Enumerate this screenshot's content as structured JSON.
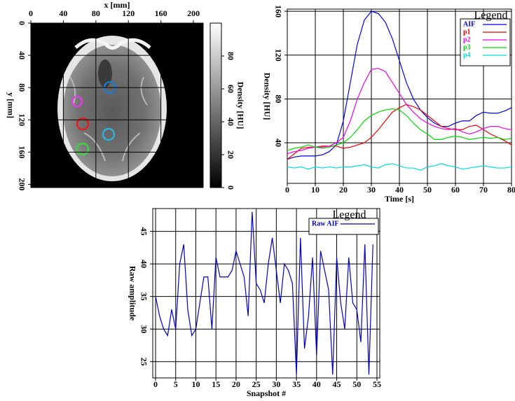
{
  "chart_data": [
    {
      "type": "image",
      "xlabel": "x [mm]",
      "ylabel": "y [mm]",
      "xlim": [
        0,
        212
      ],
      "ylim": [
        0,
        204
      ],
      "xticks": [
        0,
        40,
        80,
        120,
        160,
        200
      ],
      "yticks": [
        0,
        40,
        80,
        120,
        160,
        200
      ],
      "x_axis_position": "top",
      "y_inverted": true,
      "grid": true,
      "colorbar": {
        "label": "Density [HU]",
        "clim": [
          0,
          100
        ],
        "ticks": [
          0,
          20,
          40,
          60,
          80
        ]
      }
    },
    {
      "type": "line",
      "xlabel": "Time [s]",
      "ylabel": "Density [HU]",
      "xlim": [
        0,
        80
      ],
      "ylim": [
        3,
        162
      ],
      "xticks": [
        0,
        10,
        20,
        30,
        40,
        50,
        60,
        70,
        80
      ],
      "yticks": [
        40,
        80,
        120,
        160
      ],
      "grid": true,
      "legend": {
        "title": "Legend",
        "loc": "upper right"
      },
      "x": [
        0,
        2.5,
        5,
        7.5,
        10,
        12.5,
        15,
        17.5,
        20,
        22.5,
        25,
        27.5,
        30,
        32.5,
        35,
        37.5,
        40,
        42.5,
        45,
        47.5,
        50,
        52.5,
        55,
        57.5,
        60,
        62.5,
        65,
        67.5,
        70,
        72.5,
        75,
        77.5,
        80
      ],
      "series": [
        {
          "name": "AIF",
          "color": "#0000ee",
          "values": [
            25,
            27,
            28,
            28,
            28,
            29,
            32,
            38,
            60,
            95,
            130,
            152,
            160,
            158,
            150,
            135,
            115,
            95,
            80,
            70,
            63,
            58,
            55,
            55,
            58,
            60,
            60,
            65,
            68,
            67,
            67,
            69,
            72
          ]
        },
        {
          "name": "p1",
          "color": "#ee0000",
          "values": [
            25,
            30,
            35,
            36,
            36,
            37,
            37,
            37,
            35,
            36,
            38,
            40,
            45,
            52,
            60,
            68,
            72,
            75,
            73,
            70,
            65,
            60,
            55,
            53,
            52,
            52,
            55,
            56,
            52,
            48,
            45,
            42,
            38
          ]
        },
        {
          "name": "p2",
          "color": "#ee00ee",
          "values": [
            30,
            32,
            33,
            35,
            36,
            36,
            37,
            40,
            45,
            60,
            80,
            95,
            107,
            108,
            105,
            95,
            85,
            75,
            68,
            62,
            58,
            55,
            53,
            52,
            53,
            50,
            48,
            50,
            53,
            55,
            55,
            53,
            52
          ]
        },
        {
          "name": "p3",
          "color": "#00dd00",
          "values": [
            33,
            35,
            36,
            38,
            36,
            35,
            36,
            38,
            40,
            45,
            52,
            60,
            65,
            68,
            70,
            71,
            70,
            65,
            58,
            52,
            48,
            43,
            43,
            45,
            46,
            45,
            43,
            44,
            45,
            44,
            45,
            43,
            44
          ]
        },
        {
          "name": "p4",
          "color": "#00dddd",
          "values": [
            18,
            17,
            18,
            16,
            18,
            17,
            18,
            17,
            18,
            18,
            19,
            20,
            18,
            17,
            20,
            21,
            19,
            17,
            17,
            15,
            18,
            19,
            21,
            19,
            18,
            16,
            17,
            18,
            19,
            18,
            17,
            17,
            18
          ]
        }
      ]
    },
    {
      "type": "line",
      "xlabel": "Snapshot #",
      "ylabel": "Raw amplitude",
      "xlim": [
        -0.7,
        55.7
      ],
      "ylim": [
        22.5,
        48.5
      ],
      "xticks": [
        0,
        5,
        10,
        15,
        20,
        25,
        30,
        35,
        40,
        45,
        50,
        55
      ],
      "yticks": [
        25,
        30,
        35,
        40,
        45
      ],
      "grid": true,
      "legend": {
        "title": "Legend",
        "loc": "upper right"
      },
      "x": [
        0,
        1,
        2,
        3,
        4,
        5,
        6,
        7,
        8,
        9,
        10,
        11,
        12,
        13,
        14,
        15,
        16,
        17,
        18,
        19,
        20,
        21,
        22,
        23,
        24,
        25,
        26,
        27,
        28,
        29,
        30,
        31,
        32,
        33,
        34,
        35,
        36,
        37,
        38,
        39,
        40,
        41,
        42,
        43,
        44,
        45,
        46,
        47,
        48,
        49,
        50,
        51,
        52,
        53,
        54
      ],
      "series": [
        {
          "name": "Raw AIF",
          "color": "#0000cc",
          "values": [
            35,
            32,
            30,
            29,
            33,
            30,
            40,
            43,
            33,
            29,
            30,
            34,
            38,
            38,
            30,
            41,
            38,
            38,
            38,
            39,
            42,
            40,
            38,
            32,
            48,
            37,
            36,
            34,
            40,
            44,
            39,
            34,
            40,
            39,
            37,
            23,
            44,
            27,
            32,
            41,
            26,
            42,
            39,
            36,
            23,
            41,
            34,
            30,
            41,
            34,
            33,
            28,
            43,
            23,
            43
          ]
        }
      ]
    }
  ]
}
